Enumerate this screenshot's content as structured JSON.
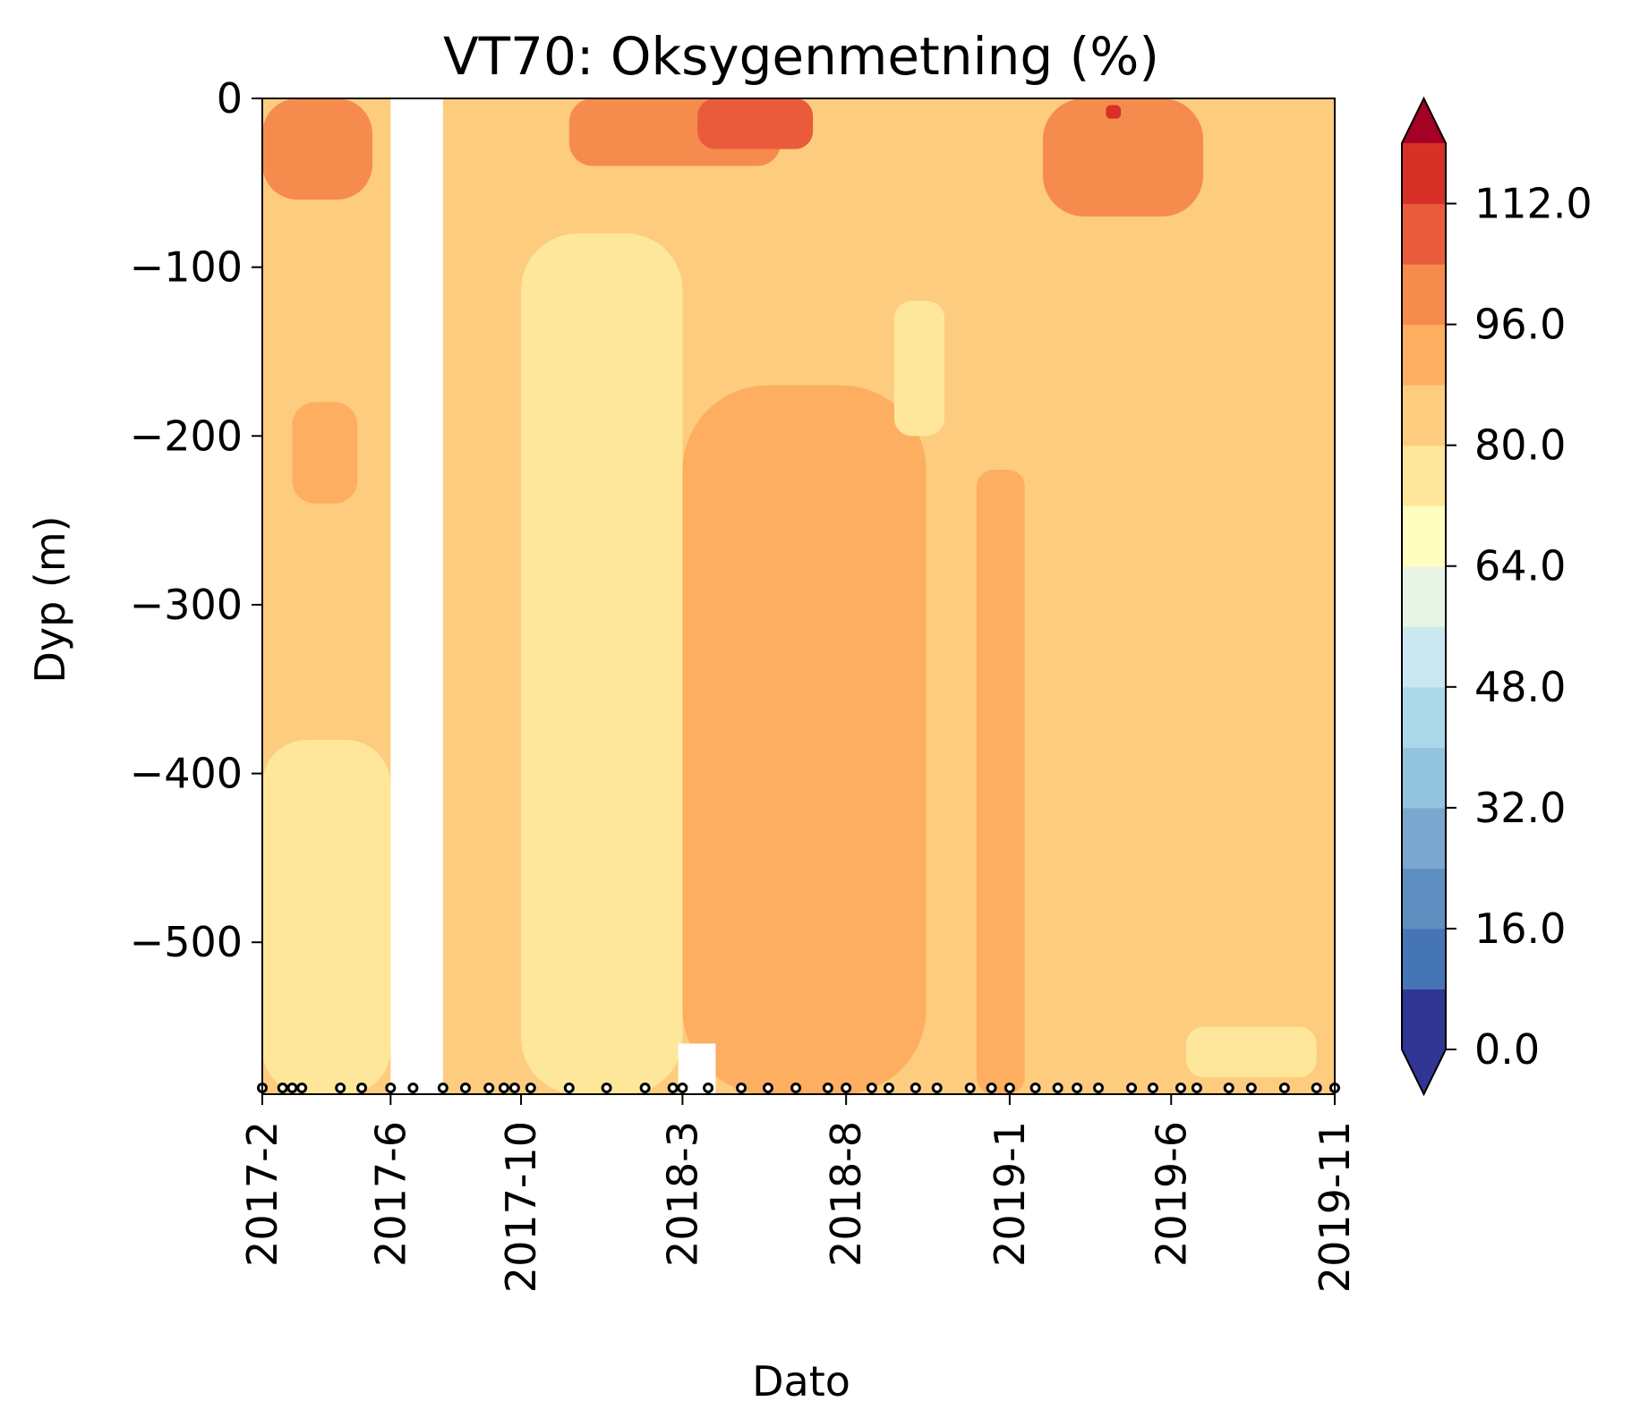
{
  "chart_data": {
    "type": "contour",
    "title": "VT70: Oksygenmetning (%)",
    "xlabel": "Dato",
    "ylabel": "Dyp (m)",
    "ylim": [
      -590,
      0
    ],
    "x_range_months": [
      "2017-2",
      "2019-11"
    ],
    "x_ticks": [
      {
        "label": "2017-2",
        "date": "2017-02-01"
      },
      {
        "label": "2017-6",
        "date": "2017-06-01"
      },
      {
        "label": "2017-10",
        "date": "2017-10-01"
      },
      {
        "label": "2018-3",
        "date": "2018-03-01"
      },
      {
        "label": "2018-8",
        "date": "2018-08-01"
      },
      {
        "label": "2019-1",
        "date": "2019-01-01"
      },
      {
        "label": "2019-6",
        "date": "2019-06-01"
      },
      {
        "label": "2019-11",
        "date": "2019-11-01"
      }
    ],
    "y_ticks": [
      {
        "label": "0",
        "value": 0
      },
      {
        "label": "−100",
        "value": -100
      },
      {
        "label": "−200",
        "value": -200
      },
      {
        "label": "−300",
        "value": -300
      },
      {
        "label": "−400",
        "value": -400
      },
      {
        "label": "−500",
        "value": -500
      }
    ],
    "colorbar": {
      "levels": [
        0,
        8,
        16,
        24,
        32,
        40,
        48,
        56,
        64,
        72,
        80,
        88,
        96,
        104,
        112
      ],
      "colors": [
        "#313695",
        "#4575b4",
        "#5f8fc0",
        "#7ba7cf",
        "#94c5de",
        "#abd9e9",
        "#cbe8f0",
        "#e9f5e4",
        "#fefec0",
        "#fee79a",
        "#fdcc7e",
        "#fdae61",
        "#f68b4e",
        "#e95b3b",
        "#d73027"
      ],
      "extend_under": "#313695",
      "extend_over": "#a50026",
      "tick_labels": [
        {
          "label": "0.0",
          "value": 0
        },
        {
          "label": "16.0",
          "value": 16
        },
        {
          "label": "32.0",
          "value": 32
        },
        {
          "label": "48.0",
          "value": 48
        },
        {
          "label": "64.0",
          "value": 64
        },
        {
          "label": "80.0",
          "value": 80
        },
        {
          "label": "96.0",
          "value": 96
        },
        {
          "label": "112.0",
          "value": 112
        }
      ]
    },
    "background_level_range": [
      80,
      88
    ],
    "regions": [
      {
        "level_range": [
          72,
          80
        ],
        "depth_range": [
          -590,
          -380
        ],
        "date_range": [
          "2017-02-01",
          "2017-06-01"
        ]
      },
      {
        "level_range": [
          72,
          80
        ],
        "depth_range": [
          -590,
          -80
        ],
        "date_range": [
          "2017-10-01",
          "2018-03-01"
        ]
      },
      {
        "level_range": [
          88,
          96
        ],
        "depth_range": [
          -590,
          -170
        ],
        "date_range": [
          "2018-03-01",
          "2018-10-15"
        ]
      },
      {
        "level_range": [
          88,
          96
        ],
        "depth_range": [
          -590,
          -220
        ],
        "date_range": [
          "2018-12-01",
          "2019-01-15"
        ]
      },
      {
        "level_range": [
          88,
          96
        ],
        "depth_range": [
          -240,
          -180
        ],
        "date_range": [
          "2017-03-01",
          "2017-05-01"
        ]
      },
      {
        "level_range": [
          96,
          104
        ],
        "depth_range": [
          -60,
          0
        ],
        "date_range": [
          "2017-02-01",
          "2017-05-15"
        ]
      },
      {
        "level_range": [
          96,
          104
        ],
        "depth_range": [
          -70,
          0
        ],
        "date_range": [
          "2019-02-01",
          "2019-07-01"
        ]
      },
      {
        "level_range": [
          96,
          104
        ],
        "depth_range": [
          -40,
          0
        ],
        "date_range": [
          "2017-11-15",
          "2018-06-01"
        ]
      },
      {
        "level_range": [
          104,
          112
        ],
        "depth_range": [
          -30,
          0
        ],
        "date_range": [
          "2018-03-15",
          "2018-07-01"
        ]
      },
      {
        "level_range": [
          112,
          120
        ],
        "depth_range": [
          -12,
          -4
        ],
        "date_range": [
          "2019-04-01",
          "2019-04-15"
        ]
      },
      {
        "level_range": [
          72,
          80
        ],
        "depth_range": [
          -580,
          -550
        ],
        "date_range": [
          "2019-06-15",
          "2019-10-15"
        ]
      },
      {
        "level_range": [
          72,
          80
        ],
        "depth_range": [
          -200,
          -120
        ],
        "date_range": [
          "2018-09-15",
          "2018-11-01"
        ]
      }
    ],
    "missing_data": [
      {
        "depth_range": [
          -590,
          0
        ],
        "date_range": [
          "2017-06-01",
          "2017-07-20"
        ]
      },
      {
        "depth_range": [
          -590,
          -560
        ],
        "date_range": [
          "2018-02-25",
          "2018-04-01"
        ]
      }
    ],
    "sample_dates": [
      "2017-02-01",
      "2017-02-20",
      "2017-03-01",
      "2017-03-10",
      "2017-04-15",
      "2017-05-05",
      "2017-06-01",
      "2017-06-22",
      "2017-07-20",
      "2017-08-10",
      "2017-09-01",
      "2017-09-15",
      "2017-09-25",
      "2017-10-10",
      "2017-11-15",
      "2017-12-20",
      "2018-01-25",
      "2018-02-20",
      "2018-03-01",
      "2018-03-25",
      "2018-04-25",
      "2018-05-20",
      "2018-06-15",
      "2018-07-15",
      "2018-08-01",
      "2018-08-25",
      "2018-09-10",
      "2018-10-05",
      "2018-10-25",
      "2018-11-25",
      "2018-12-15",
      "2019-01-01",
      "2019-01-25",
      "2019-02-15",
      "2019-03-05",
      "2019-03-25",
      "2019-04-25",
      "2019-05-15",
      "2019-06-10",
      "2019-06-25",
      "2019-07-25",
      "2019-08-15",
      "2019-09-15",
      "2019-10-15",
      "2019-11-01"
    ]
  }
}
